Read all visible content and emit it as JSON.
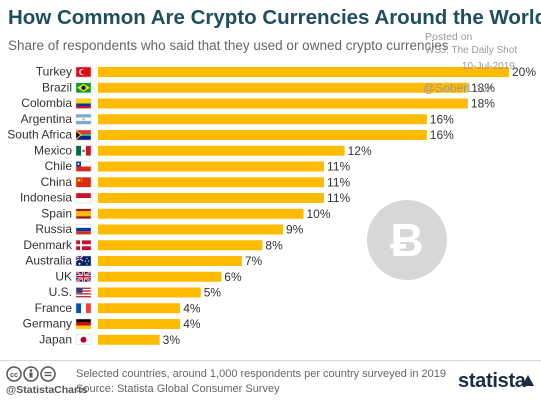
{
  "header": {
    "title": "How Common Are Crypto Currencies Around the World?",
    "subtitle": "Share of respondents who said that they used or owned crypto currencies"
  },
  "watermark": {
    "posted": "Posted on",
    "source": "WSJ: The Daily Shot",
    "date": "10-Jul-2019",
    "handle": "@SoberLook"
  },
  "footer": {
    "note": "Selected countries, around 1,000 respondents per country surveyed in 2019",
    "source": "Source: Statista Global Consumer Survey",
    "handle": "@StatistaCharts",
    "brand": "statista"
  },
  "colors": {
    "bar": "#ffbb00",
    "title": "#1f4e5f",
    "bitcoin_badge": "#d7d7d7"
  },
  "icons": [
    "bitcoin-icon",
    "creative-commons-icon",
    "statista-logo"
  ],
  "chart_data": {
    "type": "bar",
    "orientation": "horizontal",
    "categories": [
      "Turkey",
      "Brazil",
      "Colombia",
      "Argentina",
      "South Africa",
      "Mexico",
      "Chile",
      "China",
      "Indonesia",
      "Spain",
      "Russia",
      "Denmark",
      "Australia",
      "UK",
      "U.S.",
      "France",
      "Germany",
      "Japan"
    ],
    "values": [
      20,
      18,
      18,
      16,
      16,
      12,
      11,
      11,
      11,
      10,
      9,
      8,
      7,
      6,
      5,
      4,
      4,
      3
    ],
    "value_labels": [
      "20%",
      "18%",
      "18%",
      "16%",
      "16%",
      "12%",
      "11%",
      "11%",
      "11%",
      "10%",
      "9%",
      "8%",
      "7%",
      "6%",
      "5%",
      "4%",
      "4%",
      "3%"
    ],
    "unit": "%",
    "xlim": [
      0,
      20
    ],
    "grid": false,
    "legend": "none",
    "flags": [
      "turkey-flag-icon",
      "brazil-flag-icon",
      "colombia-flag-icon",
      "argentina-flag-icon",
      "south-africa-flag-icon",
      "mexico-flag-icon",
      "chile-flag-icon",
      "china-flag-icon",
      "indonesia-flag-icon",
      "spain-flag-icon",
      "russia-flag-icon",
      "denmark-flag-icon",
      "australia-flag-icon",
      "uk-flag-icon",
      "us-flag-icon",
      "france-flag-icon",
      "germany-flag-icon",
      "japan-flag-icon"
    ]
  }
}
